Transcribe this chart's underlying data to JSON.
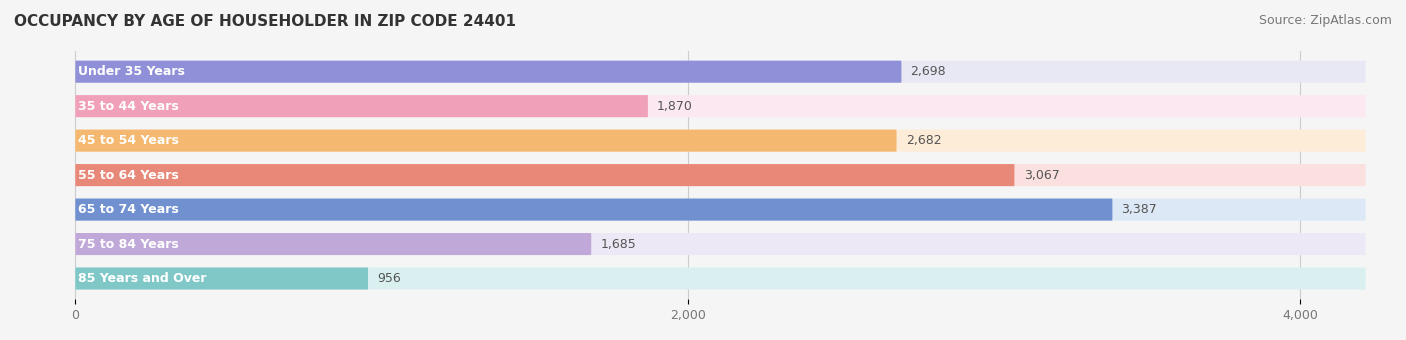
{
  "title": "OCCUPANCY BY AGE OF HOUSEHOLDER IN ZIP CODE 24401",
  "source": "Source: ZipAtlas.com",
  "categories": [
    "Under 35 Years",
    "35 to 44 Years",
    "45 to 54 Years",
    "55 to 64 Years",
    "65 to 74 Years",
    "75 to 84 Years",
    "85 Years and Over"
  ],
  "values": [
    2698,
    1870,
    2682,
    3067,
    3387,
    1685,
    956
  ],
  "bar_colors": [
    "#9090d8",
    "#f0a0b8",
    "#f5b870",
    "#e88878",
    "#7090d0",
    "#c0a8d8",
    "#80c8c8"
  ],
  "bar_bg_colors": [
    "#e8e8f5",
    "#fce8f0",
    "#fdecd8",
    "#fae0de",
    "#dce8f5",
    "#ece8f5",
    "#daf0f0"
  ],
  "xlim": [
    -200,
    4300
  ],
  "xticks": [
    0,
    2000,
    4000
  ],
  "xticklabels": [
    "0",
    "2,000",
    "4,000"
  ],
  "title_fontsize": 11,
  "source_fontsize": 9,
  "bar_height": 0.62,
  "label_fontsize": 9,
  "cat_fontsize": 9,
  "background_color": "#f5f5f5",
  "bar_bg_alpha": 1.0
}
